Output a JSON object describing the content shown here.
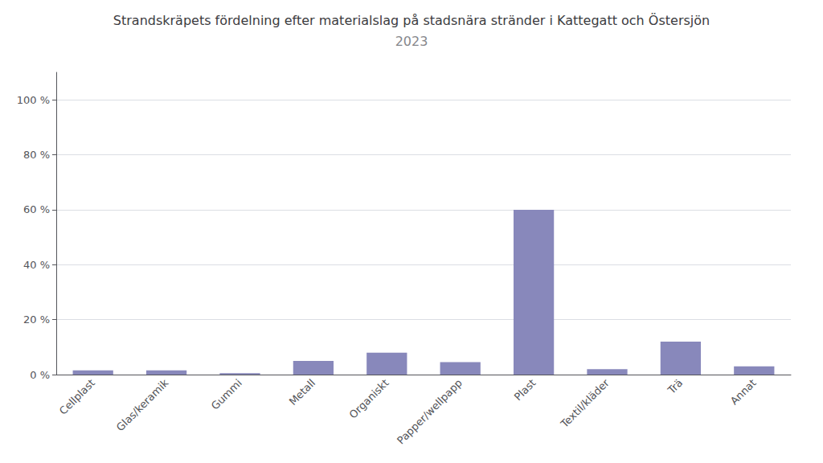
{
  "chart_data": {
    "type": "bar",
    "title": "Strandskräpets fördelning efter materialslag på stadsnära stränder i Kattegatt och Östersjön",
    "subtitle": "2023",
    "categories": [
      "Cellplast",
      "Glas/keramik",
      "Gummi",
      "Metall",
      "Organiskt",
      "Papper/wellpapp",
      "Plast",
      "Textil/kläder",
      "Trä",
      "Annat"
    ],
    "values": [
      1.5,
      1.5,
      0.5,
      5.0,
      8.0,
      4.5,
      60.0,
      2.0,
      12.0,
      3.0
    ],
    "color": "#8888bb",
    "ylim": [
      0,
      110
    ],
    "yticks": [
      {
        "value": 0,
        "label": "0 %"
      },
      {
        "value": 20,
        "label": "20 %"
      },
      {
        "value": 40,
        "label": "40 %"
      },
      {
        "value": 60,
        "label": "60 %"
      },
      {
        "value": 80,
        "label": "80 %"
      },
      {
        "value": 100,
        "label": "100 %"
      }
    ],
    "grid": true
  }
}
